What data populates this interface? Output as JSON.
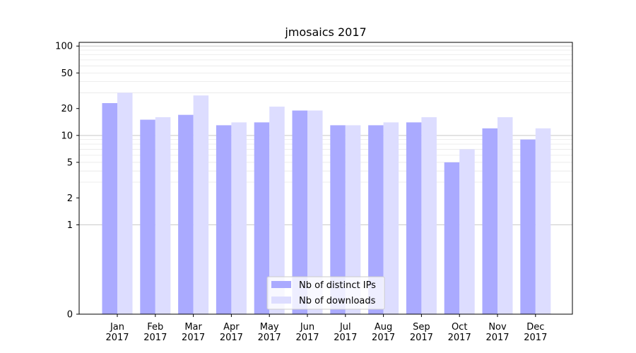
{
  "chart_data": {
    "type": "bar",
    "title": "jmosaics 2017",
    "xlabel": "",
    "ylabel": "",
    "yscale": "symlog",
    "ylim": [
      0,
      110
    ],
    "yticks": [
      0,
      1,
      2,
      5,
      10,
      20,
      50,
      100
    ],
    "grid": "y",
    "legend": "bottom-center",
    "categories": [
      "Jan\n2017",
      "Feb\n2017",
      "Mar\n2017",
      "Apr\n2017",
      "May\n2017",
      "Jun\n2017",
      "Jul\n2017",
      "Aug\n2017",
      "Sep\n2017",
      "Oct\n2017",
      "Nov\n2017",
      "Dec\n2017"
    ],
    "series": [
      {
        "name": "Nb of distinct IPs",
        "color": "#aaaaff",
        "values": [
          23,
          15,
          17,
          13,
          14,
          19,
          13,
          13,
          14,
          5,
          12,
          9
        ]
      },
      {
        "name": "Nb of downloads",
        "color": "#ddddff",
        "values": [
          30,
          16,
          28,
          14,
          21,
          19,
          13,
          14,
          16,
          7,
          16,
          12
        ]
      }
    ]
  }
}
